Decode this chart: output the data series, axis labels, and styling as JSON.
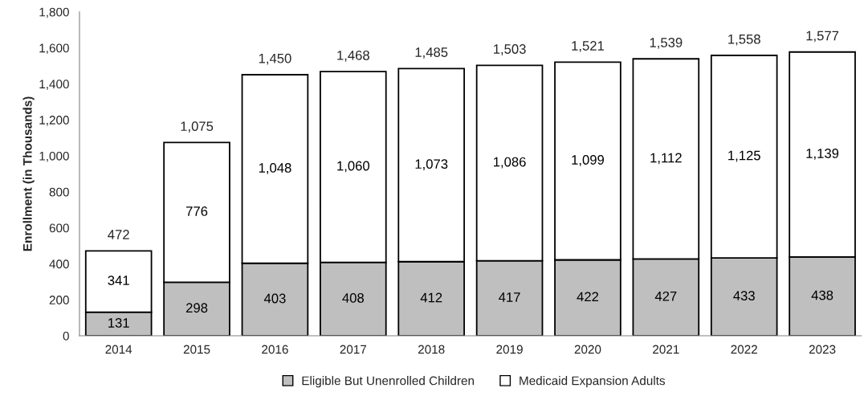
{
  "chart_data": {
    "type": "bar",
    "stacked": true,
    "ylabel": "Enrollment (in Thousands)",
    "categories": [
      "2014",
      "2015",
      "2016",
      "2017",
      "2018",
      "2019",
      "2020",
      "2021",
      "2022",
      "2023"
    ],
    "series": [
      {
        "name": "Eligible But Unenrolled Children",
        "color": "#bfbfbf",
        "values": [
          131,
          298,
          403,
          408,
          412,
          417,
          422,
          427,
          433,
          438
        ],
        "value_labels": [
          "131",
          "298",
          "403",
          "408",
          "412",
          "417",
          "422",
          "427",
          "433",
          "438"
        ]
      },
      {
        "name": "Medicaid Expansion Adults",
        "color": "#ffffff",
        "values": [
          341,
          776,
          1048,
          1060,
          1073,
          1086,
          1099,
          1112,
          1125,
          1139
        ],
        "value_labels": [
          "341",
          "776",
          "1,048",
          "1,060",
          "1,073",
          "1,086",
          "1,099",
          "1,112",
          "1,125",
          "1,139"
        ]
      }
    ],
    "totals": [
      "472",
      "1,075",
      "1,450",
      "1,468",
      "1,485",
      "1,503",
      "1,521",
      "1,539",
      "1,558",
      "1,577"
    ],
    "ylim": [
      0,
      1800
    ],
    "yticks": [
      0,
      200,
      400,
      600,
      800,
      {
        "value": 1000,
        "label": "1,000"
      },
      {
        "value": 1200,
        "label": "1,200"
      },
      {
        "value": 1400,
        "label": "1,400"
      },
      {
        "value": 1600,
        "label": "1,600"
      },
      {
        "value": 1800,
        "label": "1,800"
      }
    ],
    "grid": false,
    "legend": "bottom",
    "marker": "square"
  }
}
